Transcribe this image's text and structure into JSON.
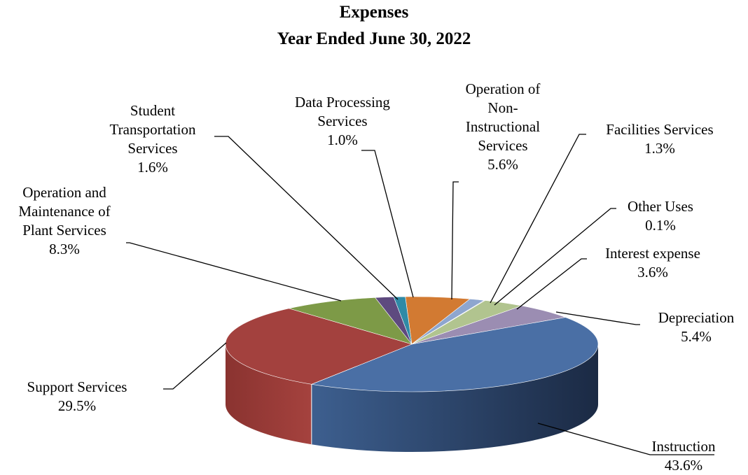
{
  "chart_data": {
    "type": "pie",
    "title": "Expenses",
    "subtitle": "Year Ended June 30, 2022",
    "slices": [
      {
        "name": "Instruction",
        "value": 43.6,
        "label": "43.6%",
        "color": "#4a6fa5"
      },
      {
        "name": "Support Services",
        "value": 29.5,
        "label": "29.5%",
        "color": "#a3413e"
      },
      {
        "name": "Operation and Maintenance of Plant Services",
        "value": 8.3,
        "label": "8.3%",
        "color": "#7d9a47"
      },
      {
        "name": "Student Transportation Services",
        "value": 1.6,
        "label": "1.6%",
        "color": "#5e4a7f"
      },
      {
        "name": "Data Processing Services",
        "value": 1.0,
        "label": "1.0%",
        "color": "#2f8aa6"
      },
      {
        "name": "Operation of Non-Instructional Services",
        "value": 5.6,
        "label": "5.6%",
        "color": "#d27a32"
      },
      {
        "name": "Facilities Services",
        "value": 1.3,
        "label": "1.3%",
        "color": "#8ea6cf"
      },
      {
        "name": "Other Uses",
        "value": 0.1,
        "label": "0.1%",
        "color": "#c2c2c2"
      },
      {
        "name": "Interest expense",
        "value": 3.6,
        "label": "3.6%",
        "color": "#b1c48f"
      },
      {
        "name": "Depreciation",
        "value": 5.4,
        "label": "5.4%",
        "color": "#9b8db2"
      }
    ]
  }
}
